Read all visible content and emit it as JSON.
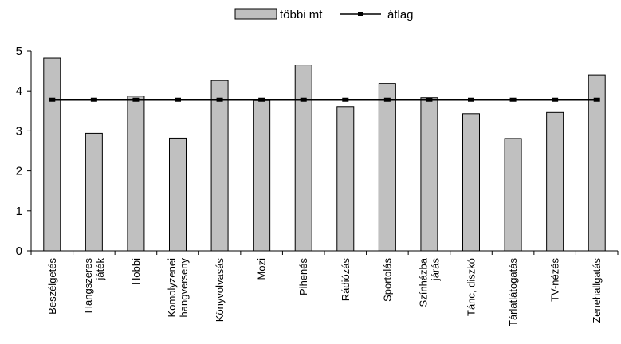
{
  "chart_data": {
    "type": "bar",
    "title": "",
    "xlabel": "",
    "ylabel": "",
    "ylim": [
      0,
      5
    ],
    "yticks": [
      "0",
      "1",
      "2",
      "3",
      "4",
      "5"
    ],
    "grid": false,
    "legend_position": "top",
    "categories": [
      [
        "Beszélgetés"
      ],
      [
        "Hangszeres",
        "játék"
      ],
      [
        "Hobbi"
      ],
      [
        "Komolyzenei",
        "hangverseny"
      ],
      [
        "Könyvolvasás"
      ],
      [
        "Mozi"
      ],
      [
        "Pihenés"
      ],
      [
        "Rádiózás"
      ],
      [
        "Sportolás"
      ],
      [
        "Színházba",
        "járás"
      ],
      [
        "Tánc, diszkó"
      ],
      [
        "Tárlatlátogatás"
      ],
      [
        "TV-nézés"
      ],
      [
        "Zenehallgatás"
      ]
    ],
    "series": [
      {
        "name": "többi mt",
        "kind": "bar",
        "color": "#c0c0c0",
        "values": [
          4.82,
          2.94,
          3.87,
          2.82,
          4.26,
          3.76,
          4.65,
          3.61,
          4.19,
          3.83,
          3.43,
          2.81,
          3.46,
          4.4
        ]
      },
      {
        "name": "átlag",
        "kind": "line",
        "color": "#000000",
        "values": [
          3.78,
          3.78,
          3.78,
          3.78,
          3.78,
          3.78,
          3.78,
          3.78,
          3.78,
          3.78,
          3.78,
          3.78,
          3.78,
          3.78
        ]
      }
    ]
  }
}
